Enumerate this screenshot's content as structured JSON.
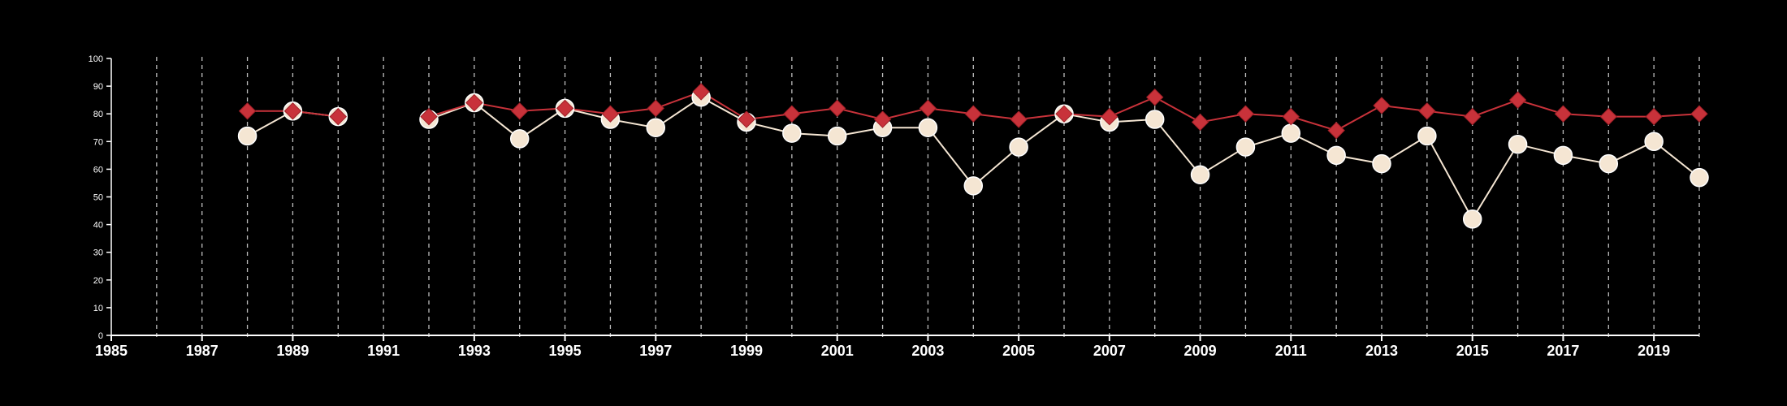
{
  "chart_data": {
    "type": "line",
    "xlim": [
      1985,
      2020
    ],
    "ylim": [
      0,
      100
    ],
    "yticks": [
      0,
      10,
      20,
      30,
      40,
      50,
      60,
      70,
      80,
      90,
      100
    ],
    "xticks": [
      1985,
      1987,
      1989,
      1991,
      1993,
      1995,
      1997,
      1999,
      2001,
      2003,
      2005,
      2007,
      2009,
      2011,
      2013,
      2015,
      2017,
      2019
    ],
    "vgrid_years": [
      1986,
      1987,
      1988,
      1989,
      1990,
      1991,
      1992,
      1993,
      1994,
      1995,
      1996,
      1997,
      1998,
      1999,
      2000,
      2001,
      2002,
      2003,
      2004,
      2005,
      2006,
      2007,
      2008,
      2009,
      2010,
      2011,
      2012,
      2013,
      2014,
      2015,
      2016,
      2017,
      2018,
      2019,
      2020
    ],
    "grid": "vertical dashed",
    "legend": "none",
    "series": [
      {
        "marker": "diamond",
        "color": "#c8323a",
        "segments": [
          {
            "x": [
              1988,
              1989,
              1990
            ],
            "y": [
              81,
              81,
              79
            ]
          },
          {
            "x": [
              1992,
              1993,
              1994,
              1995,
              1996,
              1997,
              1998,
              1999,
              2000,
              2001,
              2002,
              2003,
              2004,
              2005,
              2006,
              2007,
              2008,
              2009,
              2010,
              2011,
              2012,
              2013,
              2014,
              2015,
              2016,
              2017,
              2018,
              2019,
              2020
            ],
            "y": [
              79,
              84,
              81,
              82,
              80,
              82,
              88,
              78,
              80,
              82,
              78,
              82,
              80,
              78,
              80,
              79,
              86,
              77,
              80,
              79,
              74,
              83,
              81,
              79,
              85,
              80,
              79,
              79,
              80
            ]
          }
        ]
      },
      {
        "marker": "circle",
        "color": "#f5e6d3",
        "segments": [
          {
            "x": [
              1988,
              1989,
              1990
            ],
            "y": [
              72,
              81,
              79
            ]
          },
          {
            "x": [
              1992,
              1993,
              1994,
              1995,
              1996,
              1997,
              1998,
              1999,
              2000,
              2001,
              2002,
              2003,
              2004,
              2005,
              2006,
              2007,
              2008,
              2009,
              2010,
              2011,
              2012,
              2013,
              2014,
              2015,
              2016,
              2017,
              2018,
              2019,
              2020
            ],
            "y": [
              78,
              84,
              71,
              82,
              78,
              75,
              86,
              77,
              73,
              72,
              75,
              75,
              54,
              68,
              80,
              77,
              78,
              58,
              68,
              73,
              65,
              62,
              72,
              42,
              69,
              65,
              62,
              70,
              57
            ]
          }
        ]
      }
    ]
  }
}
